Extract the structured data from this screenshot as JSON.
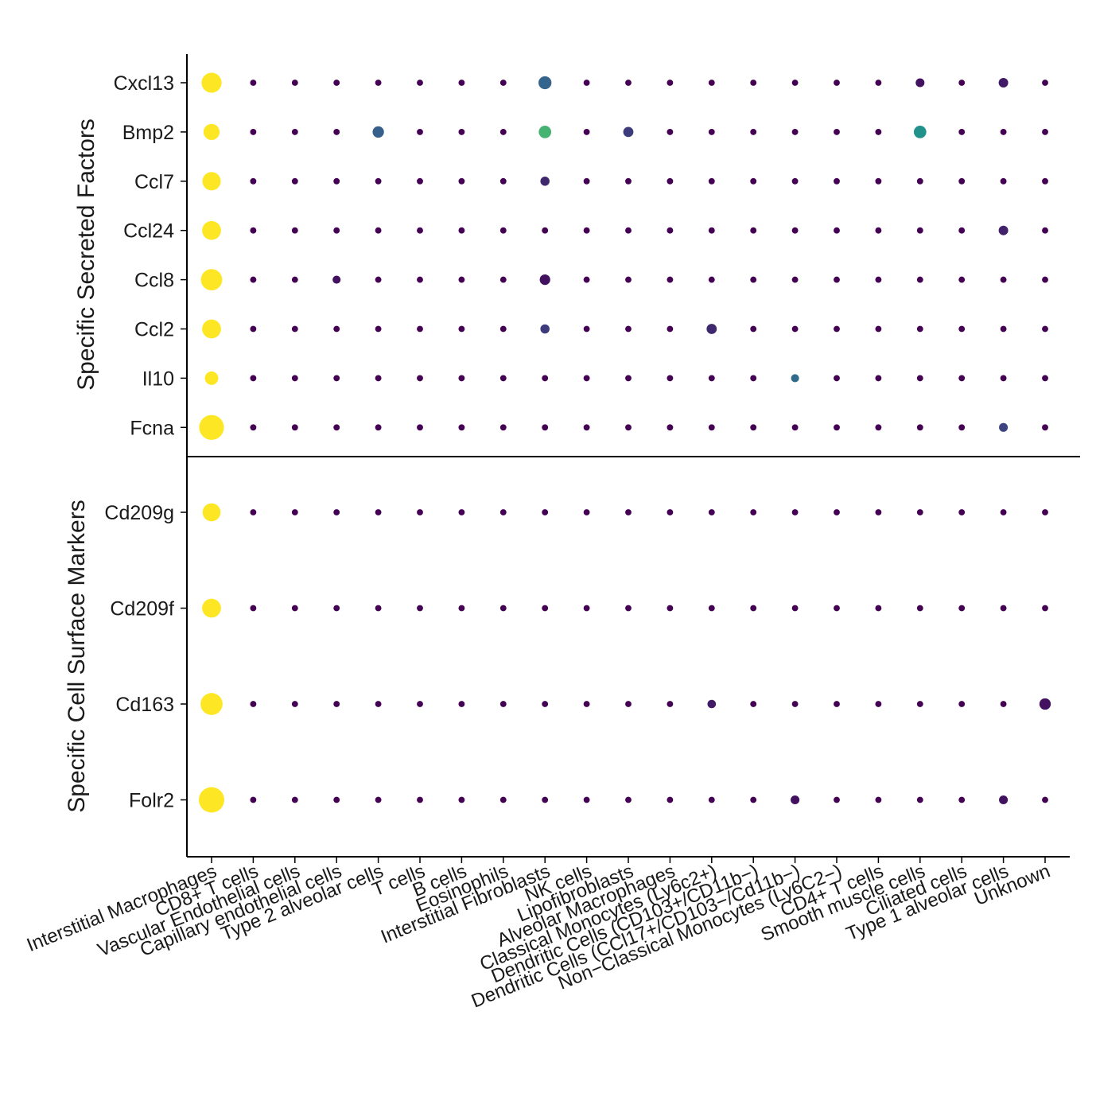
{
  "chart_data": {
    "type": "scatter",
    "subtype": "dot plot",
    "cell_types": [
      "Interstitial Macrophages",
      "CD8+ T cells",
      "Vascular Endothelial cells",
      "Capillary endothelial cells",
      "Type 2 alveolar cells",
      "T cells",
      "B cells",
      "Eosinophils",
      "Interstitial Fibroblasts",
      "NK cells",
      "Lipofibroblasts",
      "Alveolar Macrophages",
      "Classical Monocytes (Ly6c2+)",
      "Dendritic Cells (CD103+/CD11b−)",
      "Dendritic Cells (CCl17+/CD103−/Cd11b−)",
      "Non−Classical Monocytes (Ly6C2−)",
      "CD4+ T cells",
      "Smooth muscle cells",
      "Ciliated cells",
      "Type 1 alveolar cells",
      "Unknown"
    ],
    "panels": [
      {
        "ylabel": "Specific Secreted Factors",
        "genes": [
          "Cxcl13",
          "Bmp2",
          "Ccl7",
          "Ccl24",
          "Ccl8",
          "Ccl2",
          "Il10",
          "Fcna"
        ],
        "rows": [
          [
            {
              "c": 0,
              "s": 0.62,
              "v": 1.0
            },
            {
              "c": 8,
              "s": 0.26,
              "v": 0.32
            },
            {
              "c": 17,
              "s": 0.12,
              "v": 0.05
            },
            {
              "c": 19,
              "s": 0.14,
              "v": 0.08
            }
          ],
          [
            {
              "c": 0,
              "s": 0.4,
              "v": 1.0
            },
            {
              "c": 4,
              "s": 0.2,
              "v": 0.3
            },
            {
              "c": 8,
              "s": 0.24,
              "v": 0.65
            },
            {
              "c": 10,
              "s": 0.16,
              "v": 0.18
            },
            {
              "c": 17,
              "s": 0.24,
              "v": 0.5
            }
          ],
          [
            {
              "c": 0,
              "s": 0.52,
              "v": 1.0
            },
            {
              "c": 8,
              "s": 0.13,
              "v": 0.12
            }
          ],
          [
            {
              "c": 0,
              "s": 0.55,
              "v": 1.0
            },
            {
              "c": 19,
              "s": 0.14,
              "v": 0.1
            }
          ],
          [
            {
              "c": 0,
              "s": 0.7,
              "v": 1.0
            },
            {
              "c": 3,
              "s": 0.1,
              "v": 0.05
            },
            {
              "c": 8,
              "s": 0.17,
              "v": 0.05
            }
          ],
          [
            {
              "c": 0,
              "s": 0.55,
              "v": 1.0
            },
            {
              "c": 8,
              "s": 0.13,
              "v": 0.18
            },
            {
              "c": 12,
              "s": 0.16,
              "v": 0.12
            }
          ],
          [
            {
              "c": 0,
              "s": 0.28,
              "v": 1.0
            },
            {
              "c": 14,
              "s": 0.1,
              "v": 0.35
            }
          ],
          [
            {
              "c": 0,
              "s": 0.95,
              "v": 1.0
            },
            {
              "c": 19,
              "s": 0.12,
              "v": 0.2
            }
          ]
        ]
      },
      {
        "ylabel": "Specific Cell Surface Markers",
        "genes": [
          "Cd209g",
          "Cd209f",
          "Cd163",
          "Folr2"
        ],
        "rows": [
          [
            {
              "c": 0,
              "s": 0.5,
              "v": 1.0
            }
          ],
          [
            {
              "c": 0,
              "s": 0.55,
              "v": 1.0
            }
          ],
          [
            {
              "c": 0,
              "s": 0.75,
              "v": 1.0
            },
            {
              "c": 12,
              "s": 0.11,
              "v": 0.08
            },
            {
              "c": 20,
              "s": 0.2,
              "v": 0.05
            }
          ],
          [
            {
              "c": 0,
              "s": 1.0,
              "v": 1.0
            },
            {
              "c": 14,
              "s": 0.12,
              "v": 0.05
            },
            {
              "c": 19,
              "s": 0.12,
              "v": 0.05
            }
          ]
        ]
      }
    ],
    "default_dot": {
      "s": 0.06,
      "v": 0.0
    },
    "colormap": "viridis",
    "legend": "none",
    "grid": false
  }
}
